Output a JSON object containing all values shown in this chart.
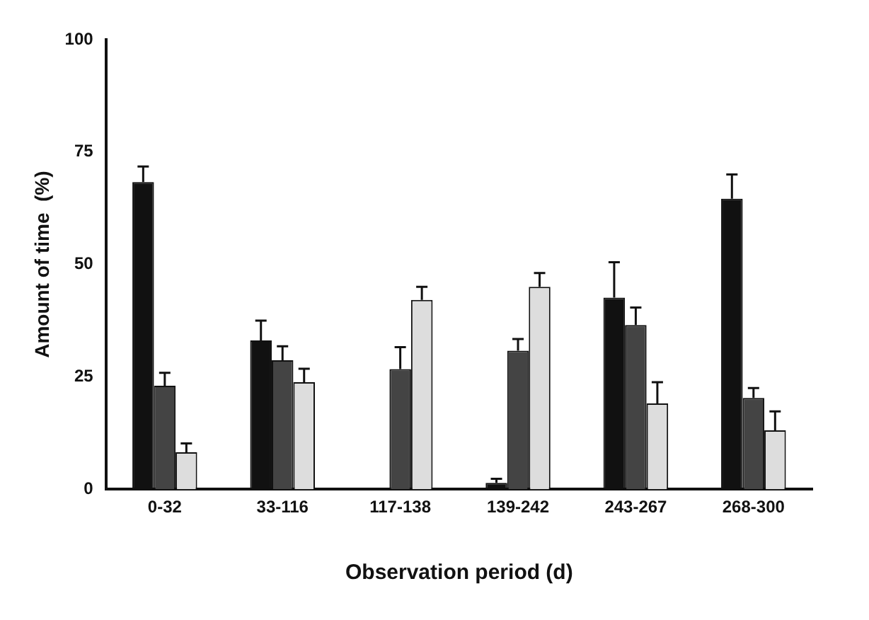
{
  "chart_data": {
    "type": "bar",
    "xlabel": "Observation period (d)",
    "ylabel": "Amount of time  (%)",
    "categories": [
      "0-32",
      "33-116",
      "117-138",
      "139-242",
      "243-267",
      "268-300"
    ],
    "series": [
      {
        "color": "#111111",
        "values": [
          68.3,
          33.1,
          0,
          1.4,
          42.6,
          64.6
        ],
        "errors": [
          [
            68.3,
            71.8
          ],
          [
            33.1,
            37.5
          ],
          null,
          [
            1.4,
            2.3
          ],
          [
            42.6,
            50.5
          ],
          [
            64.6,
            70
          ]
        ]
      },
      {
        "color": "#444444",
        "values": [
          23,
          28.7,
          26.7,
          30.8,
          36.5,
          20.3
        ],
        "errors": [
          [
            23,
            25.9
          ],
          [
            28.7,
            31.8
          ],
          [
            26.7,
            31.6
          ],
          [
            30.8,
            33.4
          ],
          [
            36.5,
            40.4
          ],
          [
            20.3,
            22.5
          ]
        ]
      },
      {
        "color": "#dddddd",
        "values": [
          8.2,
          23.8,
          42.1,
          45,
          19.1,
          13.1
        ],
        "errors": [
          [
            8.2,
            10.2
          ],
          [
            23.8,
            26.8
          ],
          [
            42.1,
            45
          ],
          [
            45,
            48.1
          ],
          [
            19.1,
            23.8
          ],
          [
            13.1,
            17.3
          ]
        ]
      }
    ],
    "ylim": [
      0,
      100
    ],
    "yticks": [
      0,
      25,
      50,
      75,
      100
    ],
    "grid": false,
    "legend": false
  }
}
